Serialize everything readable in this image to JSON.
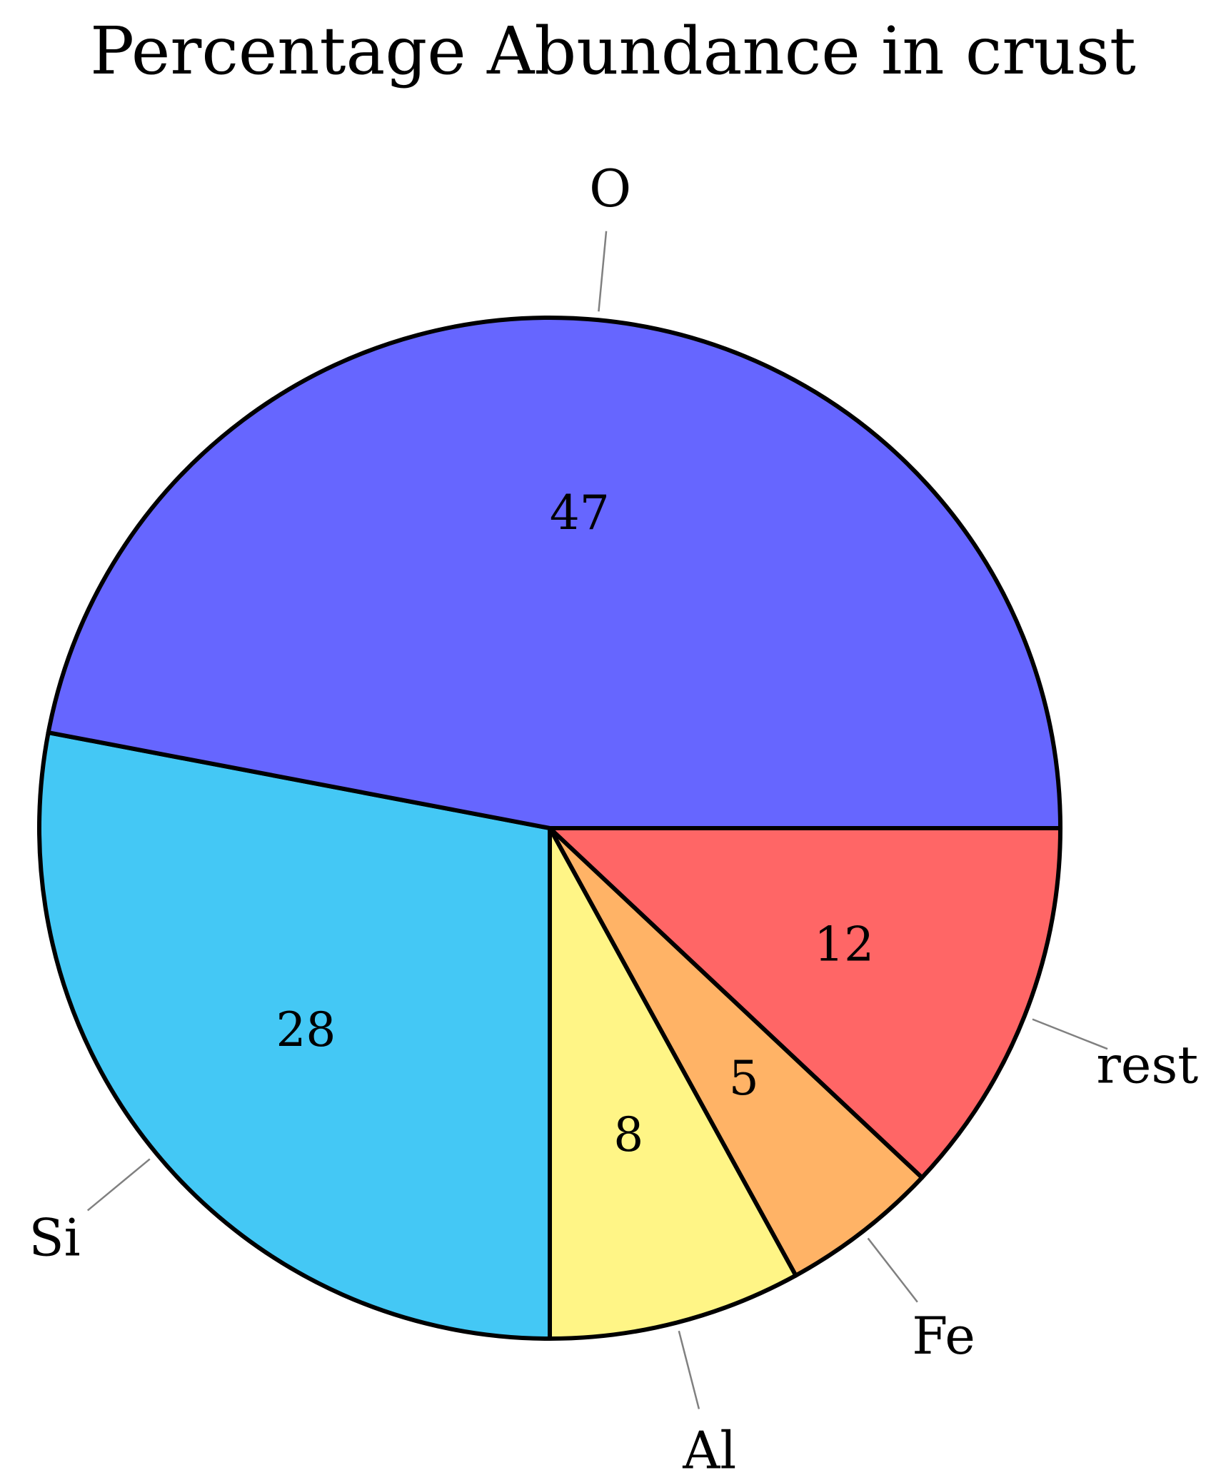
{
  "chart_data": {
    "type": "pie",
    "title": "Percentage Abundance in crust",
    "slices": [
      {
        "label": "rest",
        "value": 12,
        "color": "#ff6666"
      },
      {
        "label": "Fe",
        "value": 5,
        "color": "#ffb366"
      },
      {
        "label": "Al",
        "value": 8,
        "color": "#fff586"
      },
      {
        "label": "Si",
        "value": 28,
        "color": "#44c8f5"
      },
      {
        "label": "O",
        "value": 47,
        "color": "#6666ff"
      }
    ],
    "start_angle_deg": 0,
    "direction": "clockwise",
    "slice_border_color": "#000000",
    "leader_line_color": "#808080"
  }
}
